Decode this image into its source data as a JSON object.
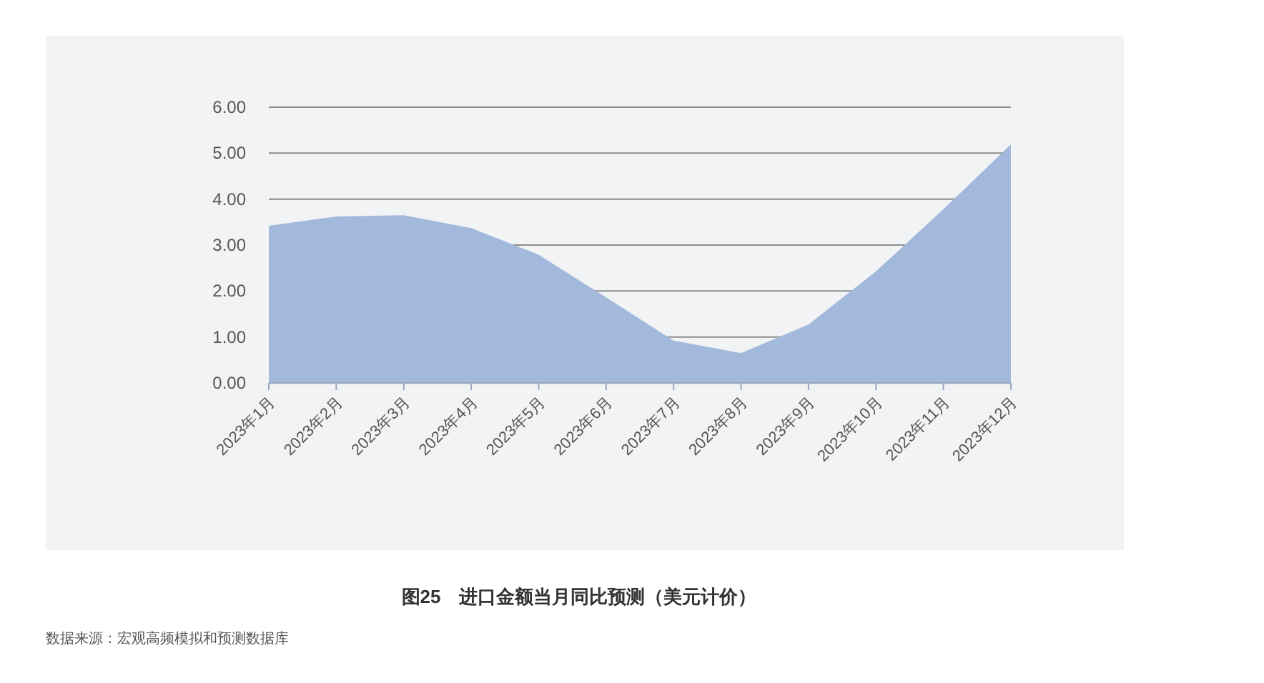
{
  "chart_data": {
    "type": "area",
    "title": "图25　进口金额当月同比预测（美元计价）",
    "annotations": [
      "数据来源：宏观高频模拟和预测数据库"
    ],
    "categories": [
      "2023年1月",
      "2023年2月",
      "2023年3月",
      "2023年4月",
      "2023年5月",
      "2023年6月",
      "2023年7月",
      "2023年8月",
      "2023年9月",
      "2023年10月",
      "2023年11月",
      "2023年12月"
    ],
    "values": [
      3.42,
      3.62,
      3.65,
      3.37,
      2.79,
      1.86,
      0.92,
      0.65,
      1.27,
      2.43,
      3.78,
      5.19
    ],
    "color": "#a3b9dc",
    "ylim": [
      0,
      6
    ],
    "yticks": [
      {
        "value": 0,
        "label": "0.00"
      },
      {
        "value": 1,
        "label": "1.00"
      },
      {
        "value": 2,
        "label": "2.00"
      },
      {
        "value": 3,
        "label": "3.00"
      },
      {
        "value": 4,
        "label": "4.00"
      },
      {
        "value": 5,
        "label": "5.00"
      },
      {
        "value": 6,
        "label": "6.00"
      }
    ],
    "grid": "y"
  }
}
